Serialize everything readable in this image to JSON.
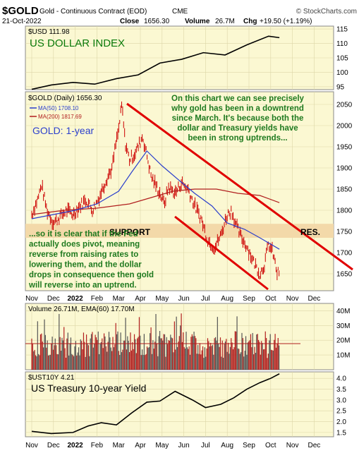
{
  "header": {
    "symbol": "$GOLD",
    "name": "Gold - Continuous Contract (EOD)",
    "exchange": "CME",
    "copyright": "© StockCharts.com",
    "date": "21-Oct-2022",
    "close_label": "Close",
    "close_value": "1656.30",
    "volume_label": "Volume",
    "volume_value": "26.7M",
    "chg_label": "Chg",
    "chg_value": "+19.50 (+1.19%)"
  },
  "x_ticks": [
    "Nov",
    "Dec",
    "2022",
    "Feb",
    "Mar",
    "Apr",
    "May",
    "Jun",
    "Jul",
    "Aug",
    "Sep",
    "Oct",
    "Nov",
    "Dec"
  ],
  "colors": {
    "panel_bg": "#fbf8d2",
    "price_bar": "#cc0000",
    "ma50": "#2b3fcc",
    "ma200": "#b11f1f",
    "annotation_green": "#1f7a1f",
    "channel_red": "#e00000",
    "support_band": "#f3d9a9"
  },
  "chart_data": [
    {
      "type": "line",
      "panel": "usd",
      "legend": "$USD 111.98",
      "title": "US DOLLAR INDEX",
      "ylim": [
        94,
        116
      ],
      "y_ticks": [
        95,
        100,
        105,
        110,
        115
      ],
      "series": [
        {
          "name": "$USD",
          "x": [
            0,
            0.9,
            1.9,
            2.9,
            3.9,
            4.9,
            5.9,
            6.9,
            7.9,
            8.9,
            9.9,
            10.9,
            11.4
          ],
          "values": [
            94.1,
            95.6,
            96.5,
            95.9,
            97.8,
            99.1,
            103.2,
            104.5,
            106.8,
            106.0,
            109.5,
            112.5,
            112.0
          ]
        }
      ]
    },
    {
      "type": "bar",
      "panel": "price",
      "legend": "$GOLD (Daily) 1656.30",
      "ma50_legend": "MA(50) 1708.10",
      "ma200_legend": "MA(200) 1817.69",
      "label": "GOLD: 1-year",
      "ylim": [
        1610,
        2080
      ],
      "y_ticks": [
        1650,
        1700,
        1750,
        1800,
        1850,
        1900,
        1950,
        2000,
        2050
      ],
      "x_dates": [
        "Nov 2021",
        "Dec 2021",
        "Jan 2022",
        "Feb 2022",
        "Mar 2022",
        "Apr 2022",
        "May 2022",
        "Jun 2022",
        "Jul 2022",
        "Aug 2022",
        "Sep 2022",
        "Oct 2022",
        "Nov 2022",
        "Dec 2022"
      ],
      "price_x": [
        0,
        0.3,
        0.45,
        0.7,
        1.0,
        1.3,
        1.6,
        1.9,
        2.2,
        2.5,
        2.8,
        3.1,
        3.4,
        3.7,
        3.85,
        4.0,
        4.15,
        4.3,
        4.5,
        4.7,
        4.9,
        5.1,
        5.3,
        5.5,
        5.7,
        5.9,
        6.1,
        6.3,
        6.6,
        6.9,
        7.2,
        7.5,
        7.8,
        8.1,
        8.4,
        8.7,
        9.0,
        9.2,
        9.4,
        9.6,
        9.9,
        10.2,
        10.5,
        10.7,
        10.9,
        11.1,
        11.3,
        11.4
      ],
      "price_values": [
        1790,
        1830,
        1860,
        1800,
        1770,
        1785,
        1800,
        1790,
        1810,
        1825,
        1800,
        1830,
        1870,
        1900,
        1950,
        1990,
        2050,
        1960,
        1920,
        1930,
        1950,
        1975,
        1930,
        1880,
        1860,
        1840,
        1815,
        1855,
        1840,
        1865,
        1850,
        1810,
        1780,
        1730,
        1710,
        1740,
        1790,
        1800,
        1765,
        1740,
        1715,
        1680,
        1650,
        1670,
        1720,
        1700,
        1650,
        1656
      ],
      "ma50_x": [
        0,
        1.0,
        2.0,
        3.0,
        4.0,
        4.6,
        5.3,
        6.0,
        6.8,
        7.5,
        8.3,
        9.0,
        9.8,
        10.5,
        11.4
      ],
      "ma50_values": [
        1780,
        1790,
        1800,
        1815,
        1845,
        1890,
        1940,
        1905,
        1870,
        1840,
        1810,
        1770,
        1755,
        1735,
        1708
      ],
      "ma200_x": [
        0,
        1.5,
        3.0,
        4.5,
        5.5,
        6.5,
        7.5,
        8.5,
        9.5,
        10.5,
        11.4
      ],
      "ma200_values": [
        1790,
        1800,
        1805,
        1815,
        1830,
        1845,
        1850,
        1850,
        1840,
        1835,
        1818
      ],
      "support_label": "SUPPORT",
      "resistance_label": "RES.",
      "annotation_top": [
        "On this chart we can see precisely",
        "why gold has been in a downtrend",
        "since March. It's because both the",
        "dollar and Treasury yields have",
        "been in strong uptrends..."
      ],
      "annotation_bottom": [
        "...so it is clear that if the Fed",
        "actually does pivot, meaning",
        "reverse from raising rates to",
        "lowering them, and the dollar",
        "drops in consequence then gold",
        "will reverse into an uptrend."
      ]
    },
    {
      "type": "bar",
      "panel": "volume",
      "legend": "Volume 26.71M, EMA(60) 17.70M",
      "ylim": [
        0,
        45
      ],
      "y_ticks": [
        "10M",
        "20M",
        "30M",
        "40M"
      ],
      "tick_values": [
        10,
        20,
        30,
        40
      ],
      "ema_value": 17.7
    },
    {
      "type": "line",
      "panel": "tnx",
      "legend": "$UST10Y 4.21",
      "title": "US Treasury 10-year Yield",
      "ylim": [
        1.3,
        4.3
      ],
      "y_ticks": [
        "1.5",
        "2.0",
        "2.5",
        "3.0",
        "3.5",
        "4.0"
      ],
      "tick_values": [
        1.5,
        2.0,
        2.5,
        3.0,
        3.5,
        4.0
      ],
      "series": [
        {
          "name": "$UST10Y",
          "x": [
            0,
            0.9,
            1.9,
            2.6,
            3.2,
            3.9,
            4.6,
            5.3,
            5.9,
            6.6,
            7.4,
            8.0,
            8.7,
            9.3,
            9.9,
            10.5,
            11.0,
            11.4
          ],
          "values": [
            1.55,
            1.45,
            1.5,
            1.8,
            1.95,
            1.85,
            2.4,
            2.9,
            2.95,
            3.4,
            3.0,
            2.65,
            2.8,
            3.1,
            3.5,
            3.8,
            4.0,
            4.21
          ]
        }
      ]
    }
  ]
}
